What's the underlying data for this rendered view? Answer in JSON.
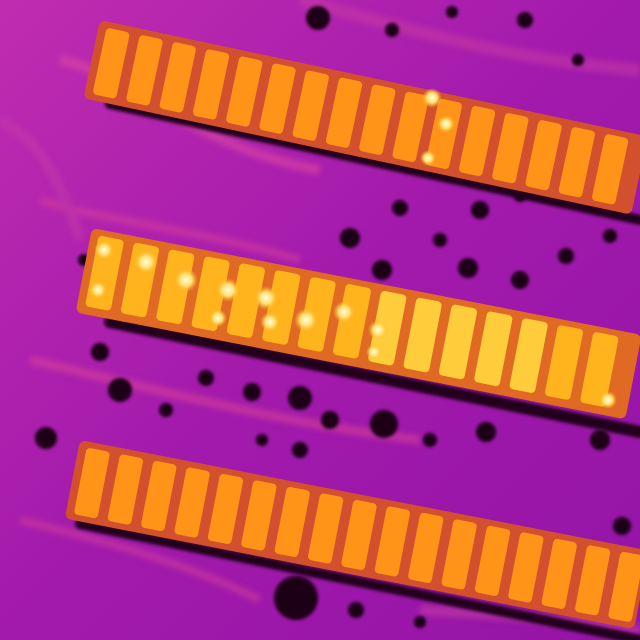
{
  "image": {
    "kind": "thermal-infrared-photo",
    "palette": [
      "#1a0010",
      "#5a0a6e",
      "#8a14a8",
      "#b41eb4",
      "#d23c8c",
      "#f0641e",
      "#ff8c14",
      "#ffaa1e",
      "#ffd23c",
      "#fff0a0"
    ],
    "background_color": "#a01aa8",
    "strip_count": 3,
    "hotspot_icon": "bright-hotspot"
  }
}
